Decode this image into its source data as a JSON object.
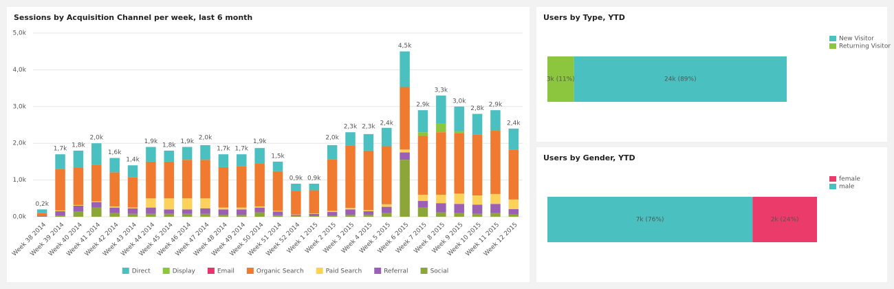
{
  "chart_data": [
    {
      "type": "bar",
      "stacked": true,
      "title": "Sessions by Acquisition Channel per week, last 6 month",
      "categories": [
        "Week 38 2014",
        "Week 39 2014",
        "Week 40 2014",
        "Week 41 2014",
        "Week 42 2014",
        "Week 43 2014",
        "Week 44 2014",
        "Week 45 2014",
        "Week 46 2014",
        "Week 47 2014",
        "Week 48 2014",
        "Week 49 2014",
        "Week 50 2014",
        "Week 51 2014",
        "Week 52 2014",
        "Week 1 2015",
        "Week 2 2015",
        "Week 3 2015",
        "Week 4 2015",
        "Week 5 2015",
        "Week 6 2015",
        "Week 7 2015",
        "Week 8 2015",
        "Week 9 2015",
        "Week 10 2015",
        "Week 11 2015",
        "Week 12 2015"
      ],
      "series": [
        {
          "name": "Direct",
          "color": "#4bc0c0",
          "values": [
            100,
            400,
            460,
            580,
            390,
            330,
            400,
            300,
            350,
            400,
            350,
            320,
            420,
            260,
            190,
            180,
            390,
            360,
            450,
            500,
            970,
            600,
            770,
            670,
            570,
            560,
            570
          ]
        },
        {
          "name": "Display",
          "color": "#8cc63f",
          "values": [
            0,
            0,
            0,
            0,
            0,
            0,
            0,
            0,
            0,
            0,
            0,
            0,
            0,
            0,
            0,
            0,
            0,
            0,
            0,
            0,
            0,
            100,
            230,
            50,
            0,
            0,
            0
          ]
        },
        {
          "name": "Email",
          "color": "#e8336d",
          "values": [
            0,
            0,
            0,
            0,
            0,
            0,
            0,
            0,
            0,
            0,
            0,
            0,
            0,
            0,
            0,
            0,
            0,
            0,
            0,
            0,
            0,
            0,
            0,
            0,
            0,
            0,
            0
          ]
        },
        {
          "name": "Organic Search",
          "color": "#f07b30",
          "values": [
            70,
            1130,
            1020,
            1000,
            930,
            820,
            1000,
            1000,
            1050,
            1050,
            1100,
            1130,
            1170,
            1080,
            650,
            630,
            1400,
            1700,
            1620,
            1580,
            1700,
            1600,
            1700,
            1650,
            1650,
            1720,
            1360
          ]
        },
        {
          "name": "Paid Search",
          "color": "#fcd25a",
          "values": [
            0,
            20,
            20,
            20,
            30,
            20,
            250,
            300,
            300,
            270,
            50,
            50,
            30,
            20,
            10,
            10,
            30,
            40,
            30,
            70,
            80,
            170,
            230,
            280,
            250,
            270,
            260
          ]
        },
        {
          "name": "Referral",
          "color": "#9b5fb4",
          "values": [
            20,
            120,
            150,
            150,
            150,
            150,
            170,
            120,
            120,
            150,
            150,
            150,
            130,
            100,
            30,
            60,
            100,
            150,
            100,
            170,
            200,
            180,
            250,
            250,
            250,
            250,
            150
          ]
        },
        {
          "name": "Social",
          "color": "#8ca63a",
          "values": [
            10,
            30,
            150,
            250,
            100,
            80,
            80,
            80,
            80,
            80,
            50,
            50,
            120,
            40,
            20,
            20,
            30,
            50,
            50,
            100,
            1550,
            250,
            120,
            100,
            80,
            100,
            60
          ]
        }
      ],
      "totals": {
        "values": [
          200,
          1700,
          1800,
          2000,
          1600,
          1400,
          1900,
          1800,
          1900,
          2000,
          1700,
          1700,
          1900,
          1500,
          900,
          900,
          2000,
          2300,
          2300,
          2400,
          4500,
          2900,
          3300,
          3000,
          2800,
          2900,
          2400
        ],
        "value_labels": [
          "0,2k",
          "1,7k",
          "1,8k",
          "2,0k",
          "1,6k",
          "1,4k",
          "1,9k",
          "1,8k",
          "1,9k",
          "2,0k",
          "1,7k",
          "1,7k",
          "1,9k",
          "1,5k",
          "0,9k",
          "0,9k",
          "2,0k",
          "2,3k",
          "2,3k",
          "2,4k",
          "4,5k",
          "2,9k",
          "3,3k",
          "3,0k",
          "2,8k",
          "2,9k",
          "2,4k"
        ]
      },
      "ylim": [
        0,
        5000
      ],
      "yticks": [
        {
          "value": 0,
          "label": "0,0k"
        },
        {
          "value": 1000,
          "label": "1,0k"
        },
        {
          "value": 2000,
          "label": "2,0k"
        },
        {
          "value": 3000,
          "label": "3,0k"
        },
        {
          "value": 4000,
          "label": "4,0k"
        },
        {
          "value": 5000,
          "label": "5,0k"
        }
      ],
      "grid": true,
      "legend": "bottom"
    },
    {
      "type": "bar",
      "orientation": "horizontal",
      "stacked": true,
      "title": "Users by Type, YTD",
      "series": [
        {
          "name": "New Visitor",
          "color": "#4bc0c0",
          "values": [
            24000
          ],
          "value_labels": [
            "24k (89%)"
          ]
        },
        {
          "name": "Returning Visitor",
          "color": "#8cc63f",
          "values": [
            3000
          ],
          "value_labels": [
            "3k (11%)"
          ]
        }
      ],
      "legend": "top-right"
    },
    {
      "type": "bar",
      "orientation": "horizontal",
      "stacked": true,
      "title": "Users by Gender, YTD",
      "series": [
        {
          "name": "female",
          "color": "#ea3b6a",
          "values": [
            2200
          ],
          "value_labels": [
            "2k (24%)"
          ]
        },
        {
          "name": "male",
          "color": "#4bc0c0",
          "values": [
            7000
          ],
          "value_labels": [
            "7k (76%)"
          ]
        }
      ],
      "legend": "top-right"
    }
  ]
}
